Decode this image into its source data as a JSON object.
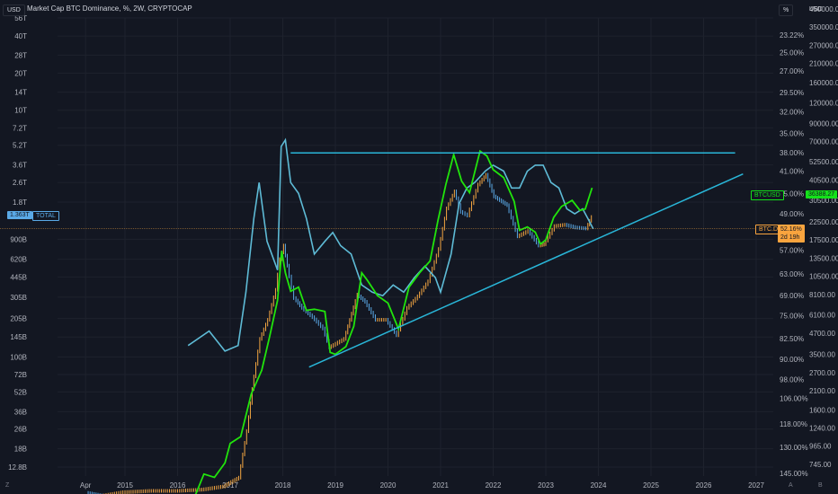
{
  "header": {
    "currency_button": "USD",
    "title": "Market Cap BTC Dominance, %, 2W, CRYPTOCAP",
    "scale_button": "%",
    "right_currency": "USD"
  },
  "footer": {
    "left_icon": "Z",
    "mid_icon": "A",
    "right_icon": "B"
  },
  "colors": {
    "background": "#131722",
    "total_orange": "#f5a742",
    "total_blue": "#5aa9e6",
    "btcd_green": "#21e40c",
    "btcd_line": "#5ebbd6",
    "trendline": "#29b6d8",
    "label_green": "#14e01a",
    "label_orange": "#f9a43e"
  },
  "labels": {
    "total_value": "1.363T",
    "total_name": "TOTAL",
    "btcusd_name": "BTCUSD",
    "btcusd_value": "36388.27",
    "btcd_name": "BTC.D",
    "btcd_value": "52.16%",
    "btcd_countdown": "2d 19h"
  },
  "chart_data": {
    "type": "line",
    "x_ticks": [
      "Apr",
      "2015",
      "2016",
      "2017",
      "2018",
      "2019",
      "2020",
      "2021",
      "2022",
      "2023",
      "2024",
      "2025",
      "2026",
      "2027"
    ],
    "left_axis_ticks": [
      "56T",
      "40T",
      "28T",
      "20T",
      "14T",
      "10T",
      "7.2T",
      "5.2T",
      "3.6T",
      "2.6T",
      "1.8T",
      "900B",
      "620B",
      "445B",
      "305B",
      "205B",
      "145B",
      "100B",
      "72B",
      "52B",
      "36B",
      "26B",
      "18B",
      "12.8B"
    ],
    "right_pct_ticks": [
      "23.22%",
      "25.00%",
      "27.00%",
      "29.50%",
      "32.00%",
      "35.00%",
      "38.00%",
      "41.00%",
      "45.00%",
      "49.00%",
      "53.00%",
      "57.00%",
      "63.00%",
      "69.00%",
      "75.00%",
      "82.50%",
      "90.00%",
      "98.00%",
      "106.00%",
      "118.00%",
      "130.00%",
      "145.00%"
    ],
    "right_usd_ticks": [
      "450000.00",
      "350000.00",
      "270000.00",
      "210000.00",
      "160000.00",
      "120000.00",
      "90000.00",
      "70000.00",
      "52500.00",
      "40500.00",
      "30500.00",
      "22500.00",
      "17500.00",
      "13500.00",
      "10500.00",
      "8100.00",
      "6100.00",
      "4700.00",
      "3500.00",
      "2700.00",
      "2100.00",
      "1600.00",
      "1240.00",
      "965.00",
      "745.00"
    ],
    "series": [
      {
        "name": "TOTAL",
        "values": [
          [
            2014.3,
            0.0079
          ],
          [
            2014.6,
            0.0075
          ],
          [
            2015.0,
            0.008
          ],
          [
            2015.5,
            0.0082
          ],
          [
            2016.0,
            0.0082
          ],
          [
            2016.5,
            0.0084
          ],
          [
            2016.9,
            0.0089
          ],
          [
            2017.2,
            0.0105
          ],
          [
            2017.35,
            0.025
          ],
          [
            2017.45,
            0.055
          ],
          [
            2017.6,
            0.14
          ],
          [
            2017.75,
            0.2
          ],
          [
            2017.9,
            0.35
          ],
          [
            2017.98,
            0.62
          ],
          [
            2018.05,
            0.8
          ],
          [
            2018.12,
            0.55
          ],
          [
            2018.25,
            0.3
          ],
          [
            2018.4,
            0.25
          ],
          [
            2018.6,
            0.21
          ],
          [
            2018.8,
            0.17
          ],
          [
            2018.92,
            0.12
          ],
          [
            2019.0,
            0.125
          ],
          [
            2019.2,
            0.14
          ],
          [
            2019.45,
            0.32
          ],
          [
            2019.6,
            0.28
          ],
          [
            2019.8,
            0.2
          ],
          [
            2020.0,
            0.2
          ],
          [
            2020.2,
            0.15
          ],
          [
            2020.4,
            0.25
          ],
          [
            2020.6,
            0.31
          ],
          [
            2020.8,
            0.41
          ],
          [
            2021.0,
            0.75
          ],
          [
            2021.15,
            1.6
          ],
          [
            2021.3,
            2.2
          ],
          [
            2021.42,
            1.5
          ],
          [
            2021.55,
            1.4
          ],
          [
            2021.75,
            2.5
          ],
          [
            2021.9,
            3.0
          ],
          [
            2022.05,
            2.0
          ],
          [
            2022.3,
            1.7
          ],
          [
            2022.5,
            0.95
          ],
          [
            2022.7,
            1.05
          ],
          [
            2022.9,
            0.8
          ],
          [
            2023.0,
            0.82
          ],
          [
            2023.2,
            1.15
          ],
          [
            2023.4,
            1.18
          ],
          [
            2023.6,
            1.12
          ],
          [
            2023.8,
            1.1
          ],
          [
            2023.9,
            1.363
          ]
        ]
      },
      {
        "name": "BTCUSD",
        "values": [
          [
            2016.3,
            450
          ],
          [
            2016.5,
            650
          ],
          [
            2016.7,
            620
          ],
          [
            2016.9,
            760
          ],
          [
            2017.0,
            1000
          ],
          [
            2017.2,
            1100
          ],
          [
            2017.4,
            2000
          ],
          [
            2017.6,
            2800
          ],
          [
            2017.75,
            4500
          ],
          [
            2017.9,
            7500
          ],
          [
            2017.98,
            15000
          ],
          [
            2018.05,
            11000
          ],
          [
            2018.15,
            8500
          ],
          [
            2018.3,
            9000
          ],
          [
            2018.45,
            6500
          ],
          [
            2018.6,
            6600
          ],
          [
            2018.8,
            6400
          ],
          [
            2018.9,
            3600
          ],
          [
            2019.0,
            3500
          ],
          [
            2019.2,
            3900
          ],
          [
            2019.35,
            5200
          ],
          [
            2019.5,
            11000
          ],
          [
            2019.6,
            10000
          ],
          [
            2019.8,
            8000
          ],
          [
            2020.0,
            7200
          ],
          [
            2020.2,
            5000
          ],
          [
            2020.4,
            9000
          ],
          [
            2020.6,
            11000
          ],
          [
            2020.8,
            13000
          ],
          [
            2020.95,
            23000
          ],
          [
            2021.1,
            38000
          ],
          [
            2021.25,
            58000
          ],
          [
            2021.4,
            40000
          ],
          [
            2021.55,
            34000
          ],
          [
            2021.75,
            61000
          ],
          [
            2021.88,
            57000
          ],
          [
            2022.0,
            47000
          ],
          [
            2022.2,
            42000
          ],
          [
            2022.4,
            30000
          ],
          [
            2022.5,
            20000
          ],
          [
            2022.65,
            21000
          ],
          [
            2022.8,
            19500
          ],
          [
            2022.9,
            16500
          ],
          [
            2023.0,
            17500
          ],
          [
            2023.15,
            24000
          ],
          [
            2023.3,
            28000
          ],
          [
            2023.5,
            30500
          ],
          [
            2023.65,
            26500
          ],
          [
            2023.75,
            27000
          ],
          [
            2023.88,
            36388
          ]
        ]
      },
      {
        "name": "BTC.D",
        "values": [
          [
            2016.2,
            85
          ],
          [
            2016.6,
            80
          ],
          [
            2016.9,
            87
          ],
          [
            2017.15,
            85
          ],
          [
            2017.3,
            68
          ],
          [
            2017.45,
            50
          ],
          [
            2017.55,
            43
          ],
          [
            2017.7,
            55
          ],
          [
            2017.9,
            62
          ],
          [
            2017.97,
            37
          ],
          [
            2018.05,
            36
          ],
          [
            2018.15,
            43
          ],
          [
            2018.3,
            45
          ],
          [
            2018.45,
            50
          ],
          [
            2018.6,
            58
          ],
          [
            2018.8,
            55
          ],
          [
            2018.95,
            53
          ],
          [
            2019.1,
            56
          ],
          [
            2019.3,
            58
          ],
          [
            2019.5,
            66
          ],
          [
            2019.7,
            68
          ],
          [
            2019.9,
            69
          ],
          [
            2020.1,
            66
          ],
          [
            2020.3,
            68
          ],
          [
            2020.5,
            64
          ],
          [
            2020.7,
            61
          ],
          [
            2020.9,
            64
          ],
          [
            2021.0,
            68
          ],
          [
            2021.2,
            58
          ],
          [
            2021.35,
            47
          ],
          [
            2021.5,
            44
          ],
          [
            2021.65,
            43
          ],
          [
            2021.85,
            41
          ],
          [
            2022.0,
            40
          ],
          [
            2022.2,
            41
          ],
          [
            2022.35,
            44
          ],
          [
            2022.5,
            44
          ],
          [
            2022.65,
            41
          ],
          [
            2022.8,
            40
          ],
          [
            2022.95,
            40
          ],
          [
            2023.1,
            43
          ],
          [
            2023.25,
            44
          ],
          [
            2023.4,
            48
          ],
          [
            2023.55,
            49
          ],
          [
            2023.7,
            48
          ],
          [
            2023.8,
            50
          ],
          [
            2023.9,
            52.16
          ]
        ]
      }
    ],
    "resistance_line_pct": 38.0,
    "last_total": "1.363T",
    "last_btcusd": "36388.27",
    "last_btcd": "52.16%"
  }
}
